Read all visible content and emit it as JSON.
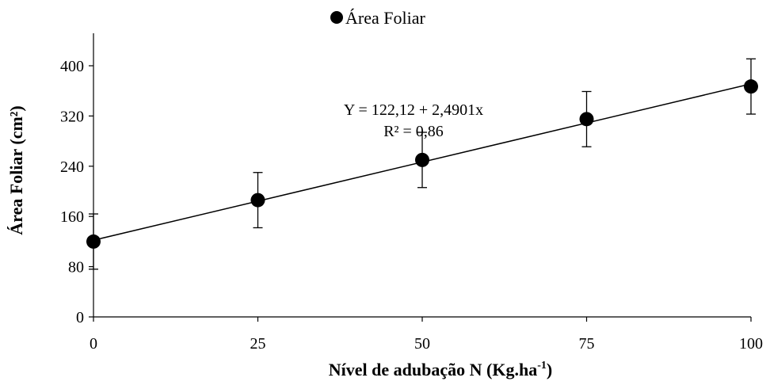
{
  "chart_data": {
    "type": "scatter",
    "title": "",
    "xlabel": "Nível de adubação N (Kg.ha",
    "xlabel_sup": "-1",
    "xlabel_end": ")",
    "ylabel": "Área Foliar (cm²)",
    "xlim": [
      0,
      100
    ],
    "ylim": [
      0,
      440
    ],
    "xticks": [
      0,
      25,
      50,
      75,
      100
    ],
    "yticks": [
      0,
      80,
      160,
      240,
      320,
      400
    ],
    "legend_position": "top",
    "grid": false,
    "series": [
      {
        "name": "Área Foliar",
        "color": "#000000",
        "x": [
          0,
          25,
          50,
          75,
          100
        ],
        "y": [
          120,
          186,
          250,
          315,
          367
        ],
        "error": [
          44,
          44,
          44,
          44,
          44
        ]
      }
    ],
    "trendline": {
      "intercept": 122.12,
      "slope": 2.4901,
      "equation": "Y = 122,12 + 2,4901x",
      "r2": "R² = 0,86"
    }
  }
}
